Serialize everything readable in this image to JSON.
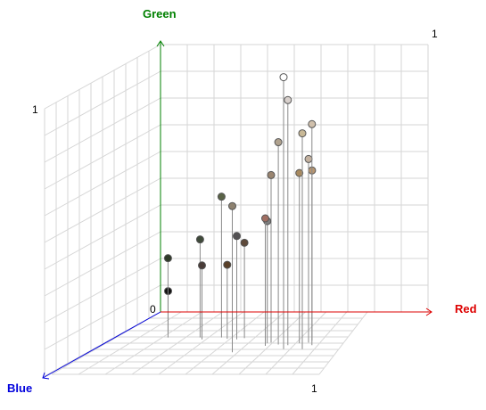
{
  "chart_data": {
    "type": "scatter",
    "title": "",
    "axes": {
      "red": {
        "label": "Red",
        "color": "#dd0000",
        "range": [
          0,
          1
        ],
        "tick_labels": [
          "0",
          "1"
        ]
      },
      "green": {
        "label": "Green",
        "color": "#008000",
        "range": [
          0,
          1
        ],
        "tick_labels": [
          "1"
        ]
      },
      "blue": {
        "label": "Blue",
        "color": "#0000dd",
        "range": [
          0,
          1
        ],
        "tick_labels": [
          "1"
        ]
      }
    },
    "extra_tick_labels": [
      "1"
    ],
    "grid": true,
    "stem_lines": true,
    "points": [
      {
        "r": 0.05,
        "g": 0.09,
        "b": 0.05,
        "color": "#111111"
      },
      {
        "r": 0.08,
        "g": 0.23,
        "b": 0.12,
        "color": "#2f3a29"
      },
      {
        "r": 0.2,
        "g": 0.3,
        "b": 0.12,
        "color": "#3f4a3a"
      },
      {
        "r": 0.22,
        "g": 0.21,
        "b": 0.15,
        "color": "#4a3c38"
      },
      {
        "r": 0.31,
        "g": 0.21,
        "b": 0.14,
        "color": "#5a4028"
      },
      {
        "r": 0.28,
        "g": 0.46,
        "b": 0.12,
        "color": "#5a6347"
      },
      {
        "r": 0.35,
        "g": 0.32,
        "b": 0.15,
        "color": "#545254"
      },
      {
        "r": 0.37,
        "g": 0.29,
        "b": 0.13,
        "color": "#5e4a3a"
      },
      {
        "r": 0.42,
        "g": 0.48,
        "b": 0.35,
        "color": "#8e8270"
      },
      {
        "r": 0.5,
        "g": 0.56,
        "b": 0.2,
        "color": "#9a8570"
      },
      {
        "r": 0.5,
        "g": 0.41,
        "b": 0.25,
        "color": "#a06e62"
      },
      {
        "r": 0.49,
        "g": 0.39,
        "b": 0.21,
        "color": "#7e7e7e"
      },
      {
        "r": 0.54,
        "g": 0.69,
        "b": 0.23,
        "color": "#b0a28e"
      },
      {
        "r": 0.58,
        "g": 0.85,
        "b": 0.24,
        "color": "#d8d0cc"
      },
      {
        "r": 0.59,
        "g": 0.95,
        "b": 0.3,
        "color": "#ffffff"
      },
      {
        "r": 0.64,
        "g": 0.57,
        "b": 0.17,
        "color": "#b89670"
      },
      {
        "r": 0.64,
        "g": 0.62,
        "b": 0.2,
        "color": "#c4b2a0"
      },
      {
        "r": 0.61,
        "g": 0.57,
        "b": 0.21,
        "color": "#a88a60"
      },
      {
        "r": 0.67,
        "g": 0.76,
        "b": 0.24,
        "color": "#d0c0ac"
      },
      {
        "r": 0.66,
        "g": 0.74,
        "b": 0.3,
        "color": "#c8b896"
      }
    ]
  }
}
